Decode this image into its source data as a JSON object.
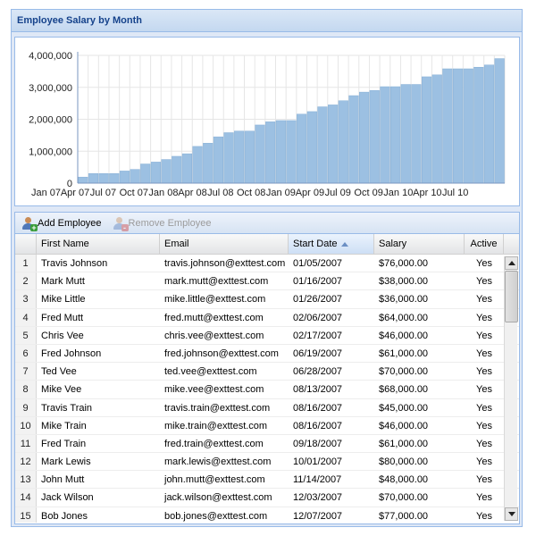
{
  "panel": {
    "title": "Employee Salary by Month"
  },
  "toolbar": {
    "add_label": "Add Employee",
    "remove_label": "Remove Employee"
  },
  "columns": {
    "first_name": "First Name",
    "email": "Email",
    "start_date": "Start Date",
    "salary": "Salary",
    "active": "Active"
  },
  "rows": [
    {
      "n": "1",
      "name": "Travis Johnson",
      "email": "travis.johnson@exttest.com",
      "start": "01/05/2007",
      "salary": "$76,000.00",
      "active": "Yes"
    },
    {
      "n": "2",
      "name": "Mark Mutt",
      "email": "mark.mutt@exttest.com",
      "start": "01/16/2007",
      "salary": "$38,000.00",
      "active": "Yes"
    },
    {
      "n": "3",
      "name": "Mike Little",
      "email": "mike.little@exttest.com",
      "start": "01/26/2007",
      "salary": "$36,000.00",
      "active": "Yes"
    },
    {
      "n": "4",
      "name": "Fred Mutt",
      "email": "fred.mutt@exttest.com",
      "start": "02/06/2007",
      "salary": "$64,000.00",
      "active": "Yes"
    },
    {
      "n": "5",
      "name": "Chris Vee",
      "email": "chris.vee@exttest.com",
      "start": "02/17/2007",
      "salary": "$46,000.00",
      "active": "Yes"
    },
    {
      "n": "6",
      "name": "Fred Johnson",
      "email": "fred.johnson@exttest.com",
      "start": "06/19/2007",
      "salary": "$61,000.00",
      "active": "Yes"
    },
    {
      "n": "7",
      "name": "Ted Vee",
      "email": "ted.vee@exttest.com",
      "start": "06/28/2007",
      "salary": "$70,000.00",
      "active": "Yes"
    },
    {
      "n": "8",
      "name": "Mike Vee",
      "email": "mike.vee@exttest.com",
      "start": "08/13/2007",
      "salary": "$68,000.00",
      "active": "Yes"
    },
    {
      "n": "9",
      "name": "Travis Train",
      "email": "travis.train@exttest.com",
      "start": "08/16/2007",
      "salary": "$45,000.00",
      "active": "Yes"
    },
    {
      "n": "10",
      "name": "Mike Train",
      "email": "mike.train@exttest.com",
      "start": "08/16/2007",
      "salary": "$46,000.00",
      "active": "Yes"
    },
    {
      "n": "11",
      "name": "Fred Train",
      "email": "fred.train@exttest.com",
      "start": "09/18/2007",
      "salary": "$61,000.00",
      "active": "Yes"
    },
    {
      "n": "12",
      "name": "Mark Lewis",
      "email": "mark.lewis@exttest.com",
      "start": "10/01/2007",
      "salary": "$80,000.00",
      "active": "Yes"
    },
    {
      "n": "13",
      "name": "John Mutt",
      "email": "john.mutt@exttest.com",
      "start": "11/14/2007",
      "salary": "$48,000.00",
      "active": "Yes"
    },
    {
      "n": "14",
      "name": "Jack Wilson",
      "email": "jack.wilson@exttest.com",
      "start": "12/03/2007",
      "salary": "$70,000.00",
      "active": "Yes"
    },
    {
      "n": "15",
      "name": "Bob Jones",
      "email": "bob.jones@exttest.com",
      "start": "12/07/2007",
      "salary": "$77,000.00",
      "active": "Yes"
    }
  ],
  "chart_data": {
    "type": "bar",
    "title": "",
    "xlabel": "",
    "ylabel": "",
    "ylim": [
      0,
      4000000
    ],
    "yticks": [
      "0",
      "1,000,000",
      "2,000,000",
      "3,000,000",
      "4,000,000"
    ],
    "xticks": [
      "Jan 07",
      "Apr 07",
      "Jul 07",
      "Oct 07",
      "Jan 08",
      "Apr 08",
      "Jul 08",
      "Oct 08",
      "Jan 09",
      "Apr 09",
      "Jul 09",
      "Oct 09",
      "Jan 10",
      "Apr 10",
      "Jul 10"
    ],
    "grid": true,
    "values": [
      190000,
      300000,
      300000,
      300000,
      380000,
      430000,
      600000,
      660000,
      740000,
      840000,
      920000,
      1150000,
      1250000,
      1450000,
      1580000,
      1630000,
      1630000,
      1820000,
      1920000,
      1960000,
      1960000,
      2160000,
      2240000,
      2390000,
      2450000,
      2580000,
      2740000,
      2850000,
      2900000,
      3020000,
      3020000,
      3090000,
      3090000,
      3330000,
      3390000,
      3580000,
      3580000,
      3580000,
      3630000,
      3700000,
      3900000
    ]
  }
}
